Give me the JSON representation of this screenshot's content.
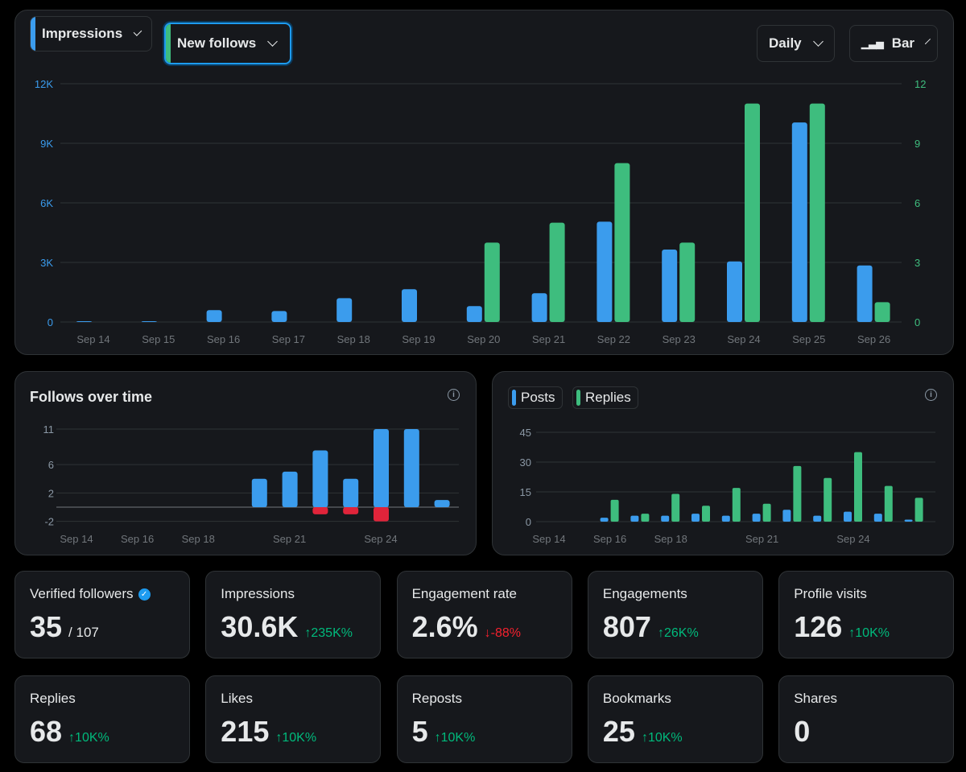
{
  "controls": {
    "metric1": "Impressions",
    "metric2": "New follows",
    "period": "Daily",
    "chart_type": "Bar",
    "colors": {
      "blue": "#3b9ced",
      "green": "#3ebd7e",
      "red": "#e0243a"
    }
  },
  "chart_data": [
    {
      "type": "bar",
      "title": "",
      "categories": [
        "Sep 14",
        "Sep 15",
        "Sep 16",
        "Sep 17",
        "Sep 18",
        "Sep 19",
        "Sep 20",
        "Sep 21",
        "Sep 22",
        "Sep 23",
        "Sep 24",
        "Sep 25",
        "Sep 26"
      ],
      "series": [
        {
          "name": "Impressions",
          "axis": "left",
          "values": [
            30,
            20,
            600,
            550,
            1200,
            1650,
            800,
            1450,
            5050,
            3650,
            3050,
            10050,
            2850
          ]
        },
        {
          "name": "New follows",
          "axis": "right",
          "values": [
            0,
            0,
            0,
            0,
            0,
            0,
            4,
            5,
            8,
            4,
            11,
            11,
            1
          ]
        }
      ],
      "left_ticks": [
        "0",
        "3K",
        "6K",
        "9K",
        "12K"
      ],
      "ylim_left": [
        0,
        12000
      ],
      "right_ticks": [
        "0",
        "3",
        "6",
        "9",
        "12"
      ],
      "ylim_right": [
        0,
        12
      ]
    },
    {
      "type": "bar",
      "title": "Follows over time",
      "categories": [
        "Sep 14",
        "Sep 15",
        "Sep 16",
        "Sep 17",
        "Sep 18",
        "Sep 19",
        "Sep 20",
        "Sep 21",
        "Sep 22",
        "Sep 23",
        "Sep 24",
        "Sep 25",
        "Sep 26"
      ],
      "x_tick_labels": [
        "Sep 14",
        "Sep 16",
        "Sep 18",
        "Sep 21",
        "Sep 24"
      ],
      "series": [
        {
          "name": "Follows",
          "values": [
            0,
            0,
            0,
            0,
            0,
            0,
            4,
            5,
            8,
            4,
            11,
            11,
            1
          ]
        },
        {
          "name": "Unfollows",
          "values": [
            0,
            0,
            0,
            0,
            0,
            0,
            0,
            0,
            -1,
            -1,
            -2,
            0,
            0
          ]
        }
      ],
      "y_ticks": [
        "-2",
        "2",
        "6",
        "11"
      ],
      "ylim": [
        -2,
        11
      ]
    },
    {
      "type": "bar",
      "title": "",
      "legend": [
        "Posts",
        "Replies"
      ],
      "categories": [
        "Sep 14",
        "Sep 15",
        "Sep 16",
        "Sep 17",
        "Sep 18",
        "Sep 19",
        "Sep 20",
        "Sep 21",
        "Sep 22",
        "Sep 23",
        "Sep 24",
        "Sep 25",
        "Sep 26"
      ],
      "x_tick_labels": [
        "Sep 14",
        "Sep 16",
        "Sep 18",
        "Sep 21",
        "Sep 24"
      ],
      "series": [
        {
          "name": "Posts",
          "values": [
            0,
            0,
            2,
            3,
            3,
            4,
            3,
            4,
            6,
            3,
            5,
            4,
            1
          ]
        },
        {
          "name": "Replies",
          "values": [
            0,
            0,
            11,
            4,
            14,
            8,
            17,
            9,
            28,
            22,
            35,
            18,
            12
          ]
        }
      ],
      "y_ticks": [
        "0",
        "15",
        "30",
        "45"
      ],
      "ylim": [
        0,
        45
      ]
    }
  ],
  "stats": [
    {
      "label": "Verified followers",
      "value": "35",
      "sub": "/ 107",
      "verified": true
    },
    {
      "label": "Impressions",
      "value": "30.6K",
      "change": "↑235K%",
      "dir": "up"
    },
    {
      "label": "Engagement rate",
      "value": "2.6%",
      "change": "↓-88%",
      "dir": "down"
    },
    {
      "label": "Engagements",
      "value": "807",
      "change": "↑26K%",
      "dir": "up"
    },
    {
      "label": "Profile visits",
      "value": "126",
      "change": "↑10K%",
      "dir": "up"
    },
    {
      "label": "Replies",
      "value": "68",
      "change": "↑10K%",
      "dir": "up"
    },
    {
      "label": "Likes",
      "value": "215",
      "change": "↑10K%",
      "dir": "up"
    },
    {
      "label": "Reposts",
      "value": "5",
      "change": "↑10K%",
      "dir": "up"
    },
    {
      "label": "Bookmarks",
      "value": "25",
      "change": "↑10K%",
      "dir": "up"
    },
    {
      "label": "Shares",
      "value": "0"
    }
  ]
}
